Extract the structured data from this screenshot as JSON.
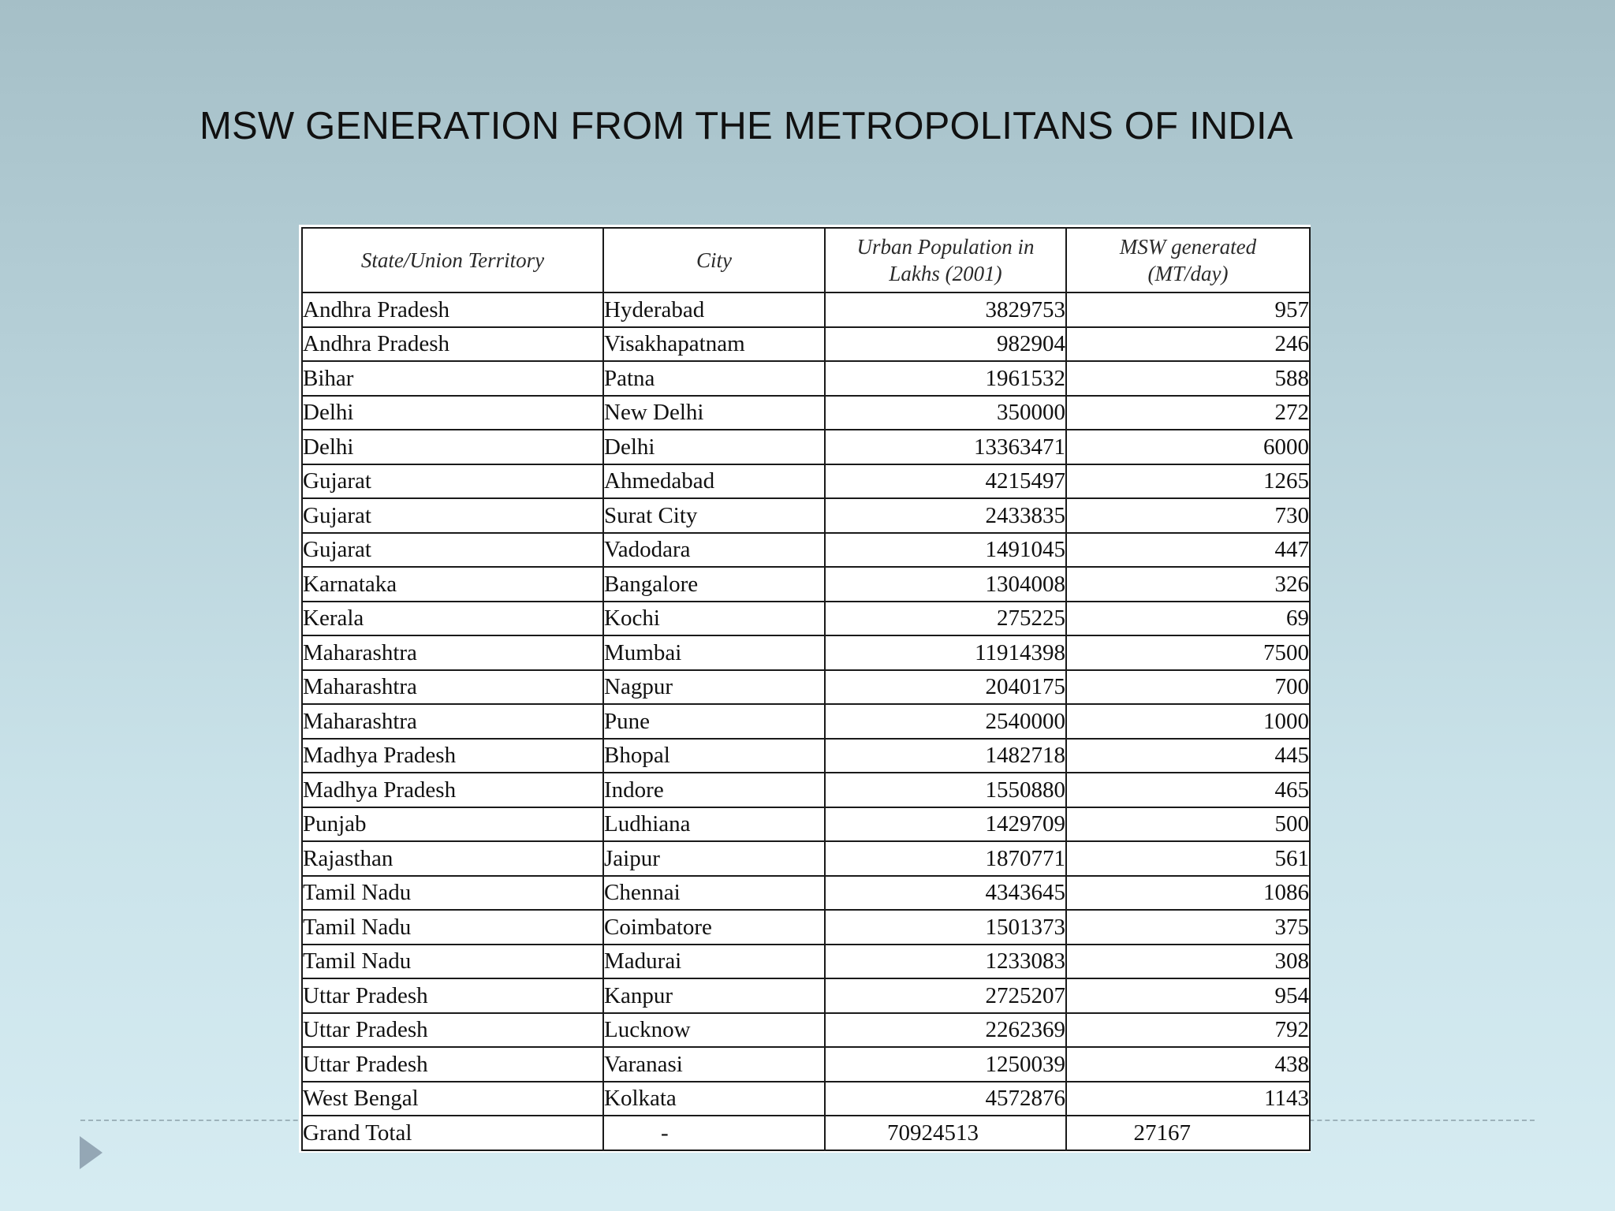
{
  "slide": {
    "title": "MSW GENERATION FROM THE METROPOLITANS OF INDIA"
  },
  "table": {
    "headers": {
      "state": "State/Union Territory",
      "city": "City",
      "population_line1": "Urban Population in",
      "population_line2": "Lakhs (2001)",
      "msw_line1": "MSW generated",
      "msw_line2": "(MT/day)"
    },
    "rows": [
      {
        "state": "Andhra Pradesh",
        "city": "Hyderabad",
        "population": "3829753",
        "msw": "957"
      },
      {
        "state": "Andhra Pradesh",
        "city": "Visakhapatnam",
        "population": "982904",
        "msw": "246"
      },
      {
        "state": "Bihar",
        "city": "Patna",
        "population": "1961532",
        "msw": "588"
      },
      {
        "state": "Delhi",
        "city": "New Delhi",
        "population": "350000",
        "msw": "272"
      },
      {
        "state": "Delhi",
        "city": "Delhi",
        "population": "13363471",
        "msw": "6000"
      },
      {
        "state": "Gujarat",
        "city": "Ahmedabad",
        "population": "4215497",
        "msw": "1265"
      },
      {
        "state": "Gujarat",
        "city": "Surat City",
        "population": "2433835",
        "msw": "730"
      },
      {
        "state": "Gujarat",
        "city": "Vadodara",
        "population": "1491045",
        "msw": "447"
      },
      {
        "state": "Karnataka",
        "city": "Bangalore",
        "population": "1304008",
        "msw": "326"
      },
      {
        "state": "Kerala",
        "city": "Kochi",
        "population": "275225",
        "msw": "69"
      },
      {
        "state": "Maharashtra",
        "city": "Mumbai",
        "population": "11914398",
        "msw": "7500"
      },
      {
        "state": "Maharashtra",
        "city": "Nagpur",
        "population": "2040175",
        "msw": "700"
      },
      {
        "state": "Maharashtra",
        "city": "Pune",
        "population": "2540000",
        "msw": "1000"
      },
      {
        "state": "Madhya Pradesh",
        "city": "Bhopal",
        "population": "1482718",
        "msw": "445"
      },
      {
        "state": "Madhya Pradesh",
        "city": "Indore",
        "population": "1550880",
        "msw": "465"
      },
      {
        "state": "Punjab",
        "city": "Ludhiana",
        "population": "1429709",
        "msw": "500"
      },
      {
        "state": "Rajasthan",
        "city": "Jaipur",
        "population": "1870771",
        "msw": "561"
      },
      {
        "state": "Tamil Nadu",
        "city": "Chennai",
        "population": "4343645",
        "msw": "1086"
      },
      {
        "state": "Tamil Nadu",
        "city": "Coimbatore",
        "population": "1501373",
        "msw": "375"
      },
      {
        "state": "Tamil Nadu",
        "city": "Madurai",
        "population": "1233083",
        "msw": "308"
      },
      {
        "state": "Uttar Pradesh",
        "city": "Kanpur",
        "population": "2725207",
        "msw": "954"
      },
      {
        "state": "Uttar Pradesh",
        "city": "Lucknow",
        "population": "2262369",
        "msw": "792"
      },
      {
        "state": "Uttar Pradesh",
        "city": "Varanasi",
        "population": "1250039",
        "msw": "438"
      },
      {
        "state": "West Bengal",
        "city": "Kolkata",
        "population": "4572876",
        "msw": "1143"
      }
    ],
    "total": {
      "state": "Grand Total",
      "city": "-",
      "population": "70924513",
      "msw": "27167"
    }
  },
  "icons": {
    "nav": "play-triangle-icon"
  },
  "colors": {
    "background_top": "#a5bfc7",
    "background_bottom": "#d6ecf2",
    "nav_arrow": "#94a7b5"
  }
}
